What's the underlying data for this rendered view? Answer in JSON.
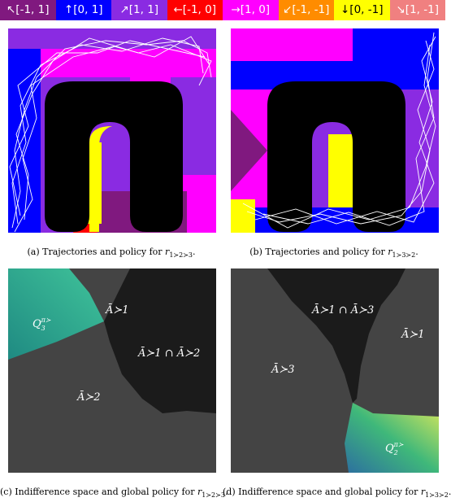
{
  "legend": [
    {
      "label": "↖[-1, 1]",
      "color": "#80197f"
    },
    {
      "label": "↑[0, 1]",
      "color": "#0000ff"
    },
    {
      "label": "↗[1, 1]",
      "color": "#8a2be2"
    },
    {
      "label": "←[-1, 0]",
      "color": "#ff0000"
    },
    {
      "label": "→[1, 0]",
      "color": "#ff00ff"
    },
    {
      "label": "↙[-1, -1]",
      "color": "#ff8c00"
    },
    {
      "label": "↓[0, -1]",
      "color": "#ffff00"
    },
    {
      "label": "↘[1, -1]",
      "color": "#f08080"
    }
  ],
  "captions": [
    {
      "text": "(a) Trajectories and policy for ",
      "math": "r",
      "sub": "1≻2≻3",
      "end": "."
    },
    {
      "text": "(b) Trajectories and policy for ",
      "math": "r",
      "sub": "1≻3≻2",
      "end": "."
    },
    {
      "text": "(c) Indifference space and global policy for ",
      "math": "r",
      "sub": "1≻2≻3",
      "end": "."
    },
    {
      "text": "(d) Indifference space and global policy for ",
      "math": "r",
      "sub": "1≻3≻2",
      "end": "."
    }
  ],
  "regions_c": {
    "a1": "Ā≻1",
    "a12": "Ā≻1 ∩ Ā≻2",
    "a2": "Ā≻2",
    "q": "Q",
    "q_sup": "π≻",
    "q_sub": "3"
  },
  "regions_d": {
    "a13": "Ā≻1 ∩ Ā≻3",
    "a1": "Ā≻1",
    "a3": "Ā≻3",
    "q": "Q",
    "q_sup": "π≻",
    "q_sub": "2"
  }
}
